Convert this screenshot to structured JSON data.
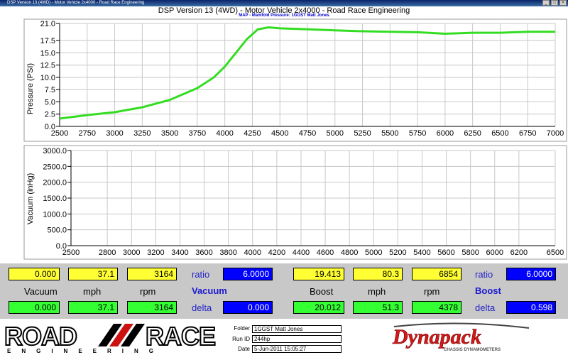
{
  "window": {
    "titlebar_text": "DSP Version 13 (4WD) - Motor Vehicle 2x4000 - Road Race Engineering",
    "main_title": "DSP Version 13 (4WD) - Motor Vehicle 2x4000 - Road Race Engineering",
    "sub_title": "MAP - Manifold Pressure: 1GGST Matt Jones"
  },
  "colors": {
    "curve": "#33dd22",
    "grid": "#c8c8c8",
    "panel_bg": "#c8c8c8",
    "yellow_field": "#ffff33",
    "green_field": "#33ff33",
    "blue_field": "#0000ff"
  },
  "chart_data": [
    {
      "type": "line",
      "title": "",
      "xlabel": "",
      "ylabel": "Pressure (PSI)",
      "xlim": [
        2500,
        7000
      ],
      "ylim": [
        0,
        21
      ],
      "x_ticks": [
        "2500",
        "2750",
        "3000",
        "3250",
        "3500",
        "3750",
        "4000",
        "4250",
        "4500",
        "4750",
        "5000",
        "5250",
        "5500",
        "5750",
        "6000",
        "6250",
        "6500",
        "6750",
        "7000"
      ],
      "y_ticks": [
        "0.0",
        "2.5",
        "5.0",
        "7.5",
        "10.0",
        "12.5",
        "15.0",
        "17.5",
        "21.0"
      ],
      "grid": true,
      "series": [
        {
          "x": [
            2500,
            2750,
            3000,
            3250,
            3500,
            3750,
            3900,
            4000,
            4100,
            4200,
            4300,
            4400,
            4500,
            4750,
            5000,
            5250,
            5500,
            5750,
            6000,
            6250,
            6500,
            6750,
            7000
          ],
          "y": [
            1.6,
            2.3,
            2.9,
            3.9,
            5.4,
            7.8,
            10.0,
            12.2,
            15.0,
            17.8,
            19.8,
            20.2,
            20.0,
            19.8,
            19.6,
            19.4,
            19.3,
            19.2,
            18.9,
            19.1,
            19.1,
            19.3,
            19.3
          ]
        }
      ]
    },
    {
      "type": "line",
      "title": "",
      "xlabel": "",
      "ylabel": "Vacuum (inHg)",
      "xlim": [
        2500,
        6500
      ],
      "ylim": [
        0,
        3000
      ],
      "x_ticks": [
        "2500",
        "2800",
        "3000",
        "3200",
        "3400",
        "3600",
        "3800",
        "4000",
        "4200",
        "4400",
        "4600",
        "4800",
        "5000",
        "5200",
        "5400",
        "5600",
        "5800",
        "6000",
        "6200",
        "6500"
      ],
      "x_tick_values": [
        2500,
        2800,
        3000,
        3200,
        3400,
        3600,
        3800,
        4000,
        4200,
        4400,
        4600,
        4800,
        5000,
        5200,
        5400,
        5600,
        5800,
        6000,
        6200,
        6500
      ],
      "y_ticks": [
        "0.0",
        "500.0",
        "1000.0",
        "1500.0",
        "2000.0",
        "2500.0",
        "3000.0"
      ],
      "grid": true,
      "series": []
    }
  ],
  "panel": {
    "left": {
      "vacuum_top": "0.000",
      "mph_top": "37.1",
      "rpm_top": "3164",
      "ratio_label": "ratio",
      "ratio_value": "6.0000",
      "vacuum_label": "Vacuum",
      "mph_label": "mph",
      "rpm_label": "rpm",
      "section_label": "Vacuum",
      "vacuum_bottom": "0.000",
      "mph_bottom": "37.1",
      "rpm_bottom": "3164",
      "delta_label": "delta",
      "delta_value": "0.000"
    },
    "right": {
      "boost_top": "19.413",
      "mph_top": "80.3",
      "rpm_top": "6854",
      "ratio_label": "ratio",
      "ratio_value": "6.0000",
      "boost_label": "Boost",
      "mph_label": "mph",
      "rpm_label": "rpm",
      "section_label": "Boost",
      "boost_bottom": "20.012",
      "mph_bottom": "51.3",
      "rpm_bottom": "4378",
      "delta_label": "delta",
      "delta_value": "0.598"
    }
  },
  "footer": {
    "logo_road": "ROAD",
    "logo_race": "RACE",
    "logo_tagline": "ENGINEERING",
    "folder_label": "Folder",
    "folder_value": "1GGST Matt Jones",
    "run_label": "Run ID",
    "run_value": "244hp",
    "date_label": "Date",
    "date_value": "5-Jun-2011 15:05:27",
    "brand": "Dynapack",
    "brand_tagline": "CHASSIS DYNAMOMETERS"
  }
}
